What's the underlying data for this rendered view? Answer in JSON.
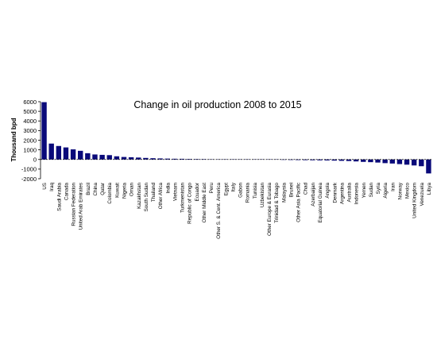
{
  "chart_data": {
    "type": "bar",
    "title": "Change in oil production 2008 to 2015",
    "ylabel": "Thousand bpd",
    "xlabel": "",
    "ylim": [
      -2000,
      6000
    ],
    "yticks": [
      -2000,
      -1000,
      0,
      1000,
      2000,
      3000,
      4000,
      5000,
      6000
    ],
    "grid": false,
    "bar_color": "#0a0a7a",
    "categories": [
      "US",
      "Iraq",
      "Saudi Arabia",
      "Canada",
      "Russian Federation",
      "United Arab Emirates",
      "Brazil",
      "China",
      "Qatar",
      "Colombia",
      "Kuwait",
      "Nigeria",
      "Oman",
      "Kazakhstan",
      "South Sudan",
      "Thailand",
      "Other Africa",
      "India",
      "Vietnam",
      "Turkmenistan",
      "Republic of Congo",
      "Ecuador",
      "Other Middle East",
      "Peru",
      "Other S. & Cent. America",
      "Egypt",
      "Italy",
      "Gabon",
      "Romania",
      "Tunisia",
      "Uzbekistan",
      "Other Europe & Eurasia",
      "Trinidad & Tobago",
      "Malaysia",
      "Brunei",
      "Other Asia Pacific",
      "Chad",
      "Azerbaijan",
      "Equatorial Guinea",
      "Angola",
      "Denmark",
      "Argentina",
      "Australia",
      "Indonesia",
      "Yemen",
      "Sudan",
      "Syria",
      "Algeria",
      "Iran",
      "Norway",
      "Mexico",
      "United Kingdom",
      "Venezuela",
      "Libya"
    ],
    "values": [
      5950,
      1650,
      1400,
      1250,
      1050,
      900,
      650,
      520,
      480,
      450,
      330,
      260,
      230,
      200,
      160,
      130,
      110,
      90,
      75,
      70,
      55,
      45,
      40,
      30,
      20,
      10,
      5,
      0,
      -5,
      -10,
      -15,
      -20,
      -30,
      -40,
      -50,
      -60,
      -70,
      -80,
      -90,
      -100,
      -120,
      -140,
      -160,
      -200,
      -250,
      -280,
      -320,
      -380,
      -420,
      -480,
      -540,
      -620,
      -700,
      -1450
    ]
  }
}
